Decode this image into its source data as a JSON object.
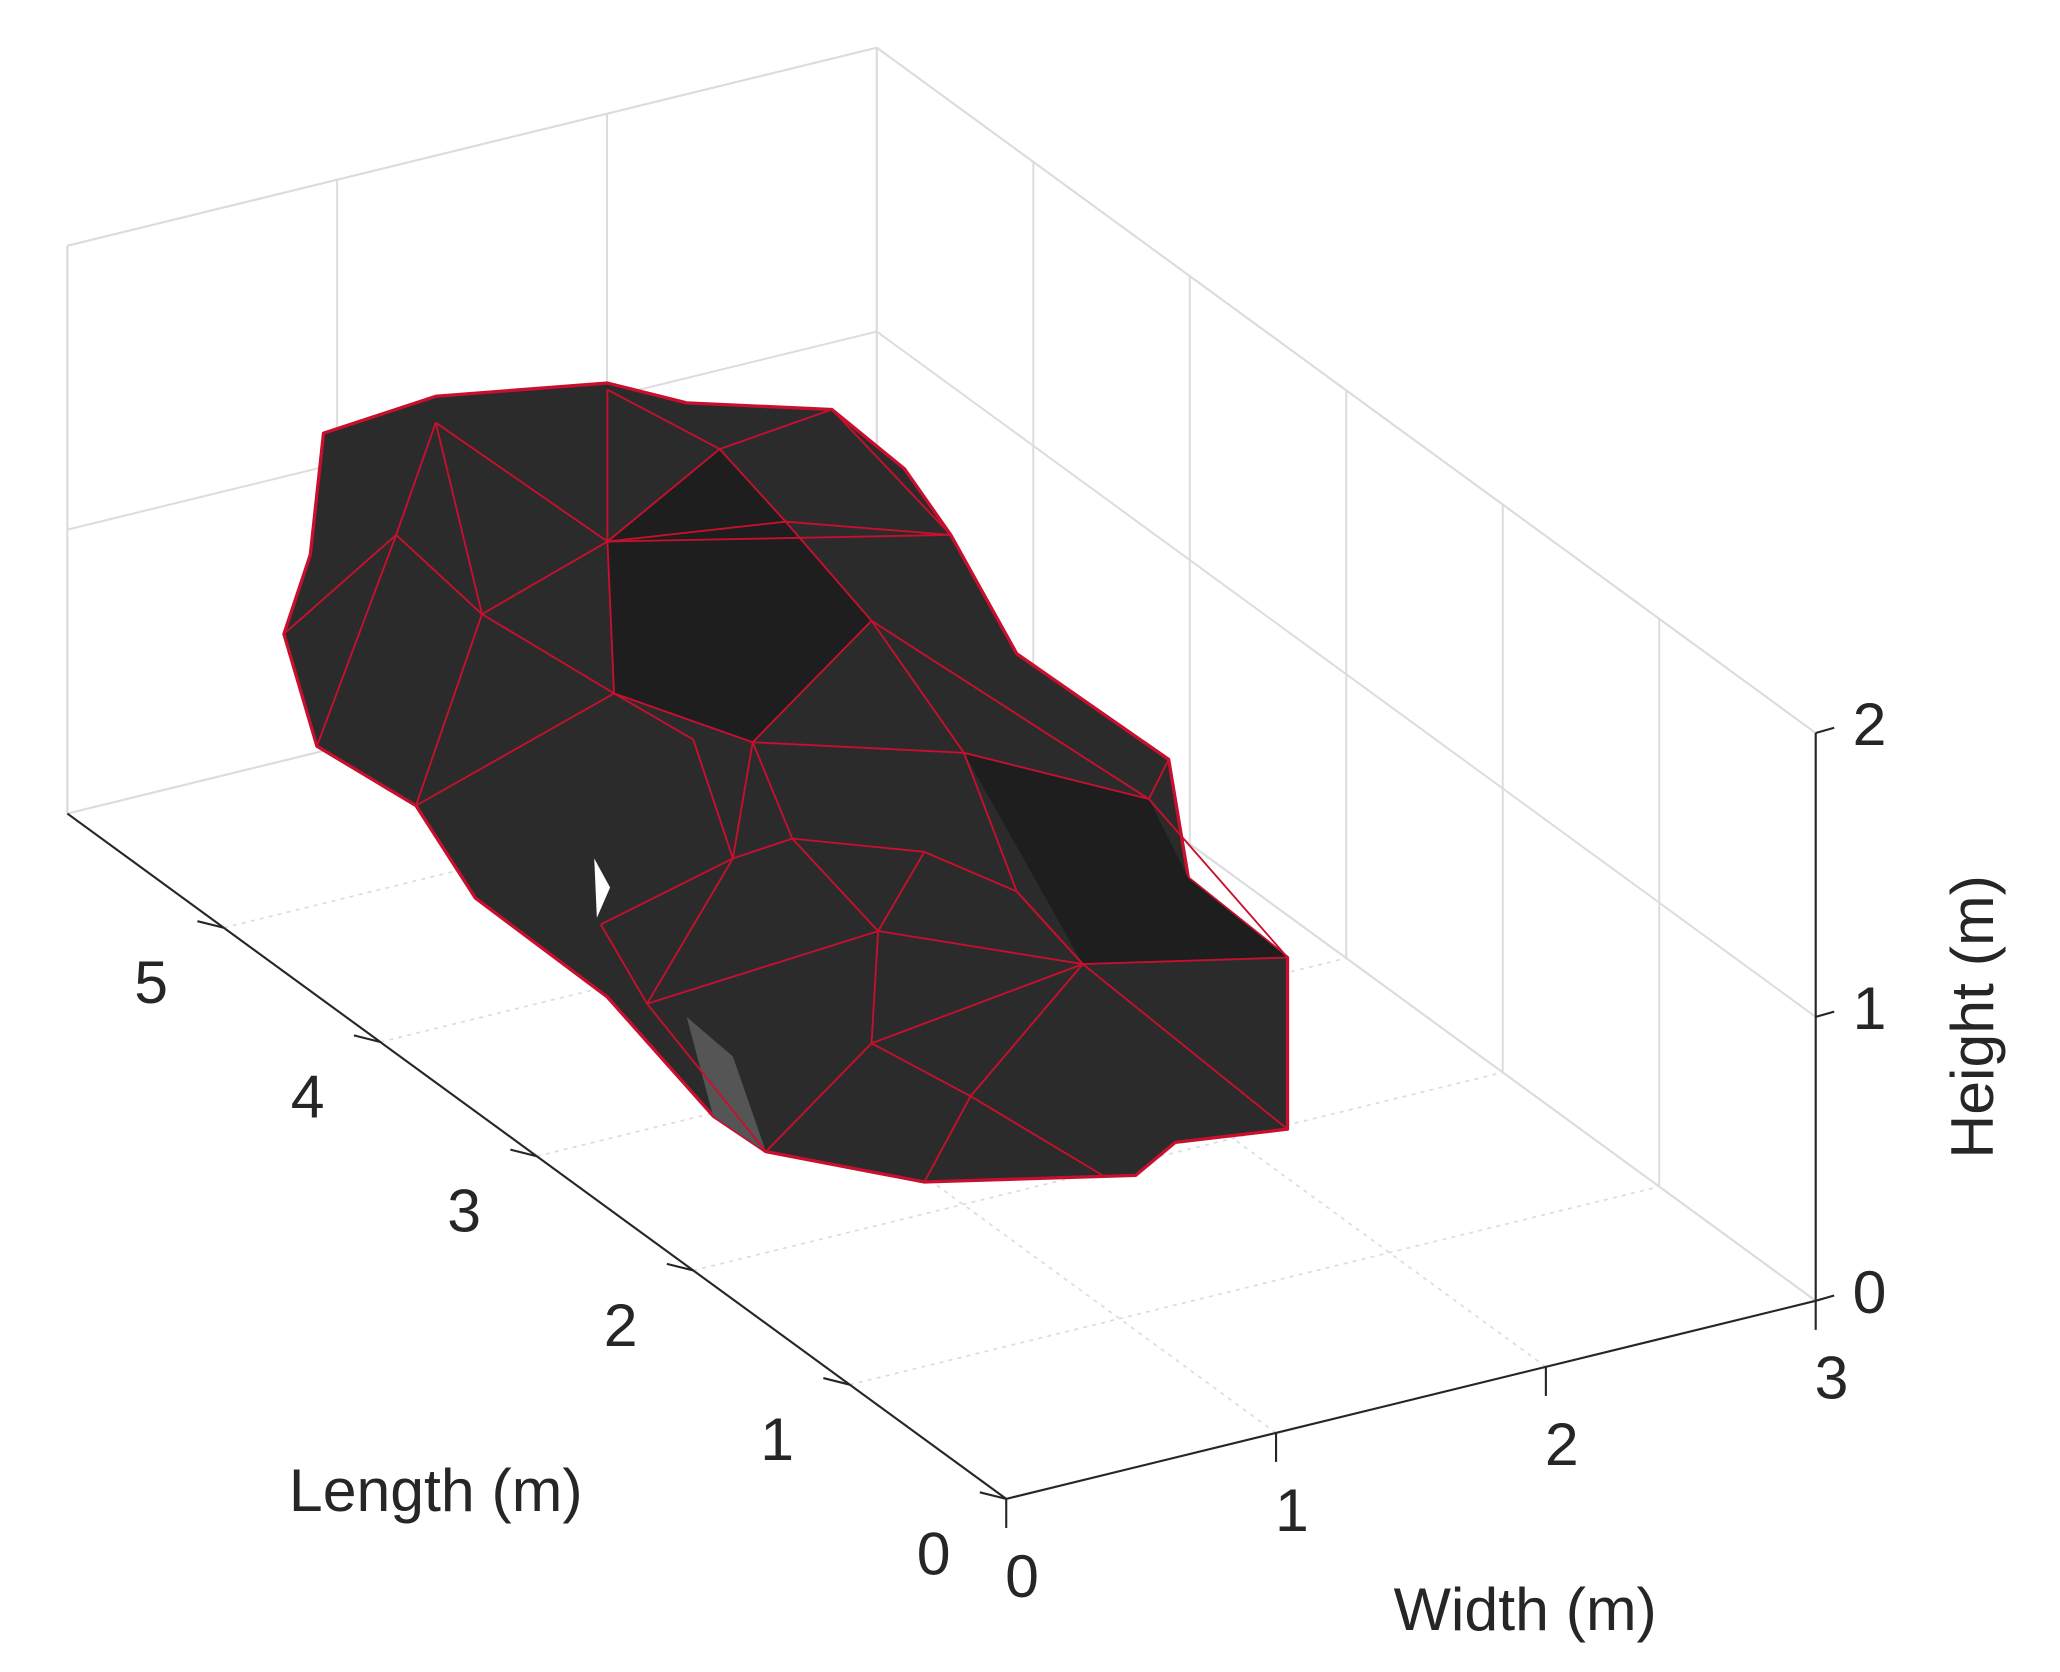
{
  "chart_data": {
    "type": "mesh3d",
    "xlabel": "Width (m)",
    "ylabel": "Length (m)",
    "zlabel": "Height (m)",
    "xlim": [
      0,
      3
    ],
    "ylim": [
      0,
      6
    ],
    "zlim": [
      0,
      2
    ],
    "xticks": [
      0,
      1,
      2,
      3
    ],
    "yticks": [
      0,
      1,
      2,
      3,
      4,
      5
    ],
    "zticks": [
      0,
      1,
      2
    ],
    "grid": true,
    "face_color": "#2b2b2b",
    "edge_color": "#c8102e"
  }
}
